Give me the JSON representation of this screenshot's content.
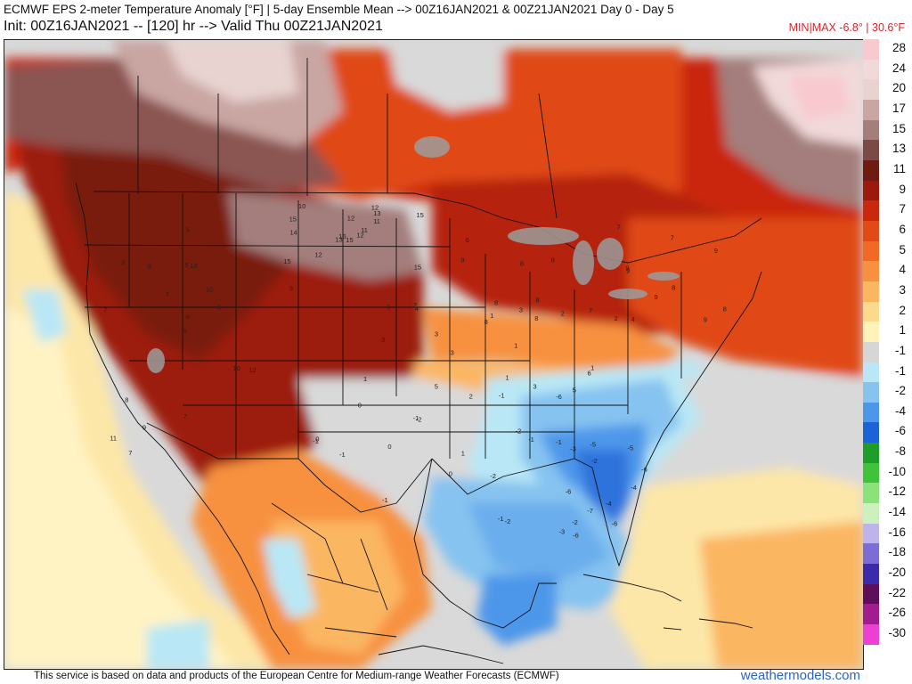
{
  "header": {
    "line1": "ECMWF EPS 2-meter Temperature Anomaly [°F] | 5-day Ensemble Mean --> 00Z16JAN2021 & 00Z21JAN2021   Day 0 - Day 5",
    "line2": "Init: 00Z16JAN2021 -- [120] hr --> Valid Thu 00Z21JAN2021",
    "minmax": "MIN|MAX -6.8° | 30.6°F"
  },
  "legend": {
    "items": [
      {
        "label": "28",
        "color": "#f8c9cf"
      },
      {
        "label": "24",
        "color": "#f2d9d9"
      },
      {
        "label": "20",
        "color": "#e8d3d0"
      },
      {
        "label": "17",
        "color": "#c9a6a2"
      },
      {
        "label": "15",
        "color": "#a37e7b"
      },
      {
        "label": "13",
        "color": "#7b4a47"
      },
      {
        "label": "11",
        "color": "#6d1b13"
      },
      {
        "label": "9",
        "color": "#9c1a0c"
      },
      {
        "label": "7",
        "color": "#c9280d"
      },
      {
        "label": "6",
        "color": "#e04a17"
      },
      {
        "label": "5",
        "color": "#f06a25"
      },
      {
        "label": "4",
        "color": "#f7913f"
      },
      {
        "label": "3",
        "color": "#fbb662"
      },
      {
        "label": "2",
        "color": "#fdd98e"
      },
      {
        "label": "1",
        "color": "#fff2b8"
      },
      {
        "label": "-1",
        "color": "#d6d6d6"
      },
      {
        "label": "-1",
        "color": "#b9e7f5"
      },
      {
        "label": "-2",
        "color": "#86c3f0"
      },
      {
        "label": "-4",
        "color": "#4d97ea"
      },
      {
        "label": "-6",
        "color": "#1c63d6"
      },
      {
        "label": "-8",
        "color": "#1f9d2a"
      },
      {
        "label": "-10",
        "color": "#3fc33b"
      },
      {
        "label": "-12",
        "color": "#8be27a"
      },
      {
        "label": "-14",
        "color": "#ccf1bf"
      },
      {
        "label": "-16",
        "color": "#bfb3ec"
      },
      {
        "label": "-18",
        "color": "#7c6cd6"
      },
      {
        "label": "-20",
        "color": "#3b2aa9"
      },
      {
        "label": "-22",
        "color": "#5e0f5c"
      },
      {
        "label": "-26",
        "color": "#a11d8f"
      },
      {
        "label": "-30",
        "color": "#ec3fd4"
      }
    ]
  },
  "map": {
    "region": "North America",
    "station_values": [
      "15",
      "15",
      "16",
      "15",
      "11",
      "12",
      "12",
      "12",
      "13",
      "12",
      "10",
      "15",
      "14",
      "15",
      "13",
      "11",
      "7",
      "5",
      "10",
      "8",
      "7",
      "11",
      "9",
      "10",
      "6",
      "12",
      "8",
      "5",
      "7",
      "10",
      "9",
      "6",
      "7",
      "8",
      "9",
      "7",
      "8",
      "9",
      "8",
      "8",
      "7",
      "8",
      "8",
      "9",
      "8",
      "9",
      "9",
      "8",
      "7",
      "9",
      "8",
      "9",
      "6",
      "6",
      "5",
      "5",
      "4",
      "5",
      "3",
      "4",
      "3",
      "3",
      "3",
      "3",
      "2",
      "2",
      "2",
      "1",
      "1",
      "1",
      "1",
      "2",
      "1",
      "-1",
      "-1",
      "-1",
      "-2",
      "-2",
      "-1",
      "-2",
      "-3",
      "-2",
      "-2",
      "-4",
      "-3",
      "-5",
      "-6",
      "-6",
      "-6",
      "-7",
      "-6",
      "-6",
      "-5",
      "-4",
      "0",
      "0",
      "0",
      "-1",
      "-1",
      "-2",
      "-1",
      "0",
      "1",
      "-1"
    ]
  },
  "footer": {
    "attribution": "This service is based on data and products of the European Centre for Medium-range Weather Forecasts (ECMWF)",
    "brand": "weathermodels.com"
  }
}
